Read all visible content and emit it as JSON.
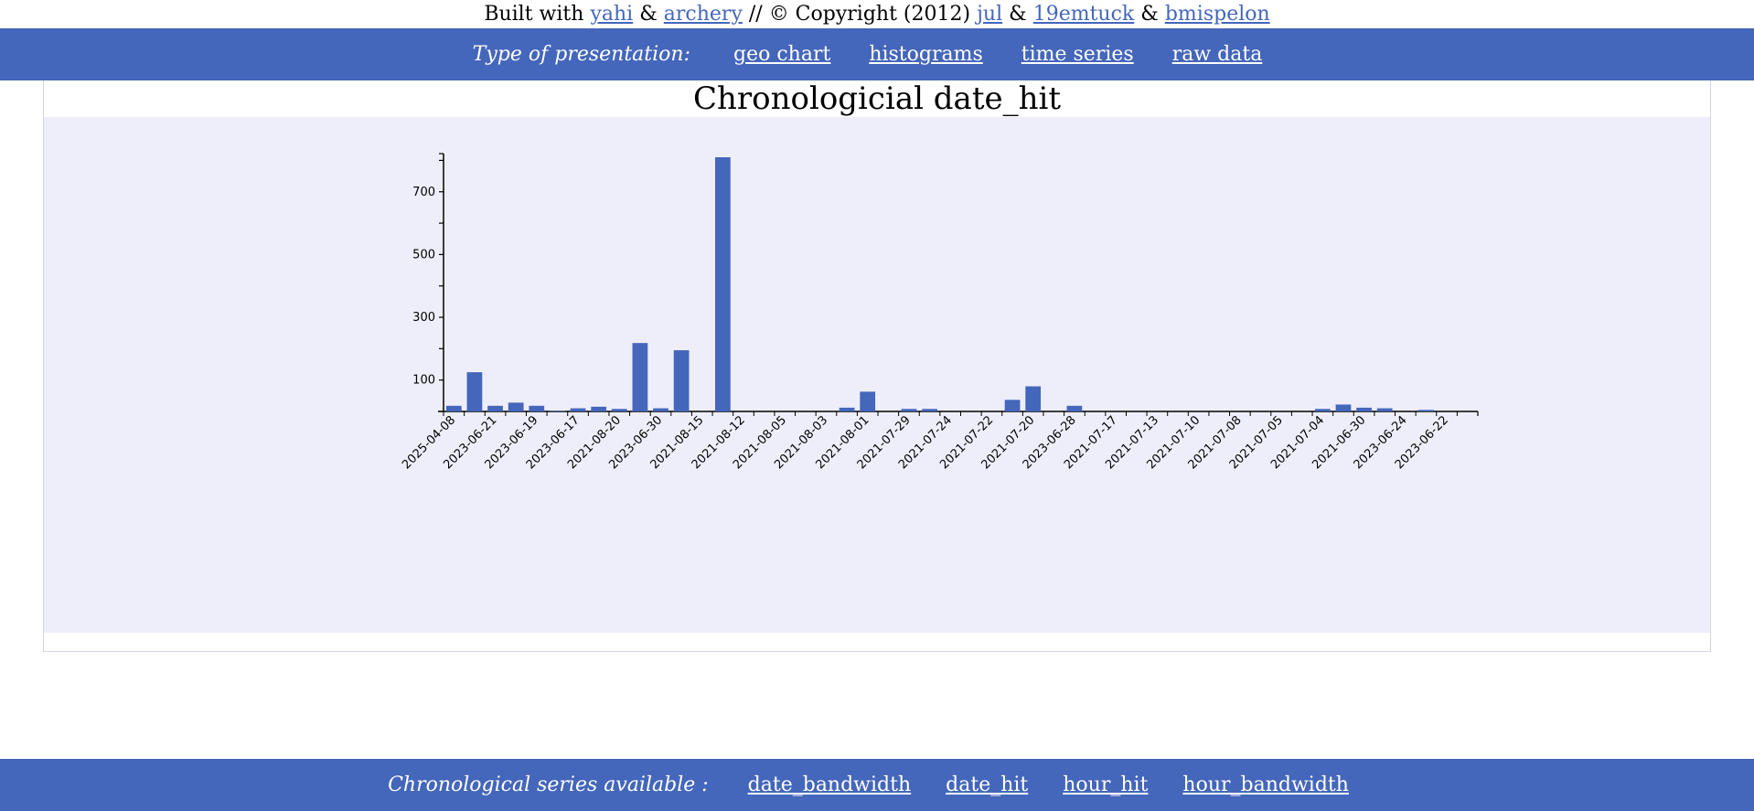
{
  "credits": {
    "prefix": "Built with",
    "link1": "yahi",
    "amp1": "&",
    "link2": "archery",
    "middle": "// © Copyright (2012)",
    "link3": "jul",
    "amp2": "&",
    "link4": "19emtuck",
    "amp3": "&",
    "link5": "bmispelon"
  },
  "top_nav": {
    "label": "Type of presentation:",
    "links": [
      "geo chart",
      "histograms",
      "time series",
      "raw data"
    ]
  },
  "bottom_nav": {
    "label": "Chronological series available :",
    "links": [
      "date_bandwidth",
      "date_hit",
      "hour_hit",
      "hour_bandwidth"
    ]
  },
  "colors": {
    "accent": "#4466bb",
    "bar": "#4466bb",
    "chart_background": "#eeeefb",
    "link": "#4466bb"
  },
  "chart_data": {
    "type": "bar",
    "title": "Chronologicial date_hit",
    "xlabel": "",
    "ylabel": "",
    "ylim": [
      0,
      810
    ],
    "yticks": [
      100,
      300,
      500,
      700
    ],
    "categories": [
      "2025-04-08",
      "",
      "2023-06-21",
      "",
      "2023-06-19",
      "",
      "2023-06-17",
      "",
      "2021-08-20",
      "",
      "2023-06-30",
      "",
      "2021-08-15",
      "",
      "2021-08-12",
      "",
      "2021-08-05",
      "",
      "2021-08-03",
      "",
      "2021-08-01",
      "",
      "2021-07-29",
      "",
      "2021-07-24",
      "",
      "2021-07-22",
      "",
      "2021-07-20",
      "",
      "2023-06-28",
      "",
      "2021-07-17",
      "",
      "2021-07-13",
      "",
      "2021-07-10",
      "",
      "2021-07-08",
      "",
      "2021-07-05",
      "",
      "2021-07-04",
      "",
      "2021-06-30",
      "",
      "2023-06-24",
      "",
      "2023-06-22",
      ""
    ],
    "values": [
      18,
      125,
      18,
      28,
      18,
      2,
      10,
      15,
      8,
      218,
      10,
      195,
      0,
      810,
      0,
      0,
      0,
      0,
      0,
      12,
      63,
      0,
      8,
      8,
      0,
      0,
      0,
      37,
      80,
      0,
      18,
      0,
      0,
      0,
      0,
      0,
      0,
      0,
      0,
      0,
      0,
      0,
      8,
      22,
      12,
      10,
      0,
      5,
      0,
      0
    ],
    "grid": false,
    "legend": "none"
  }
}
